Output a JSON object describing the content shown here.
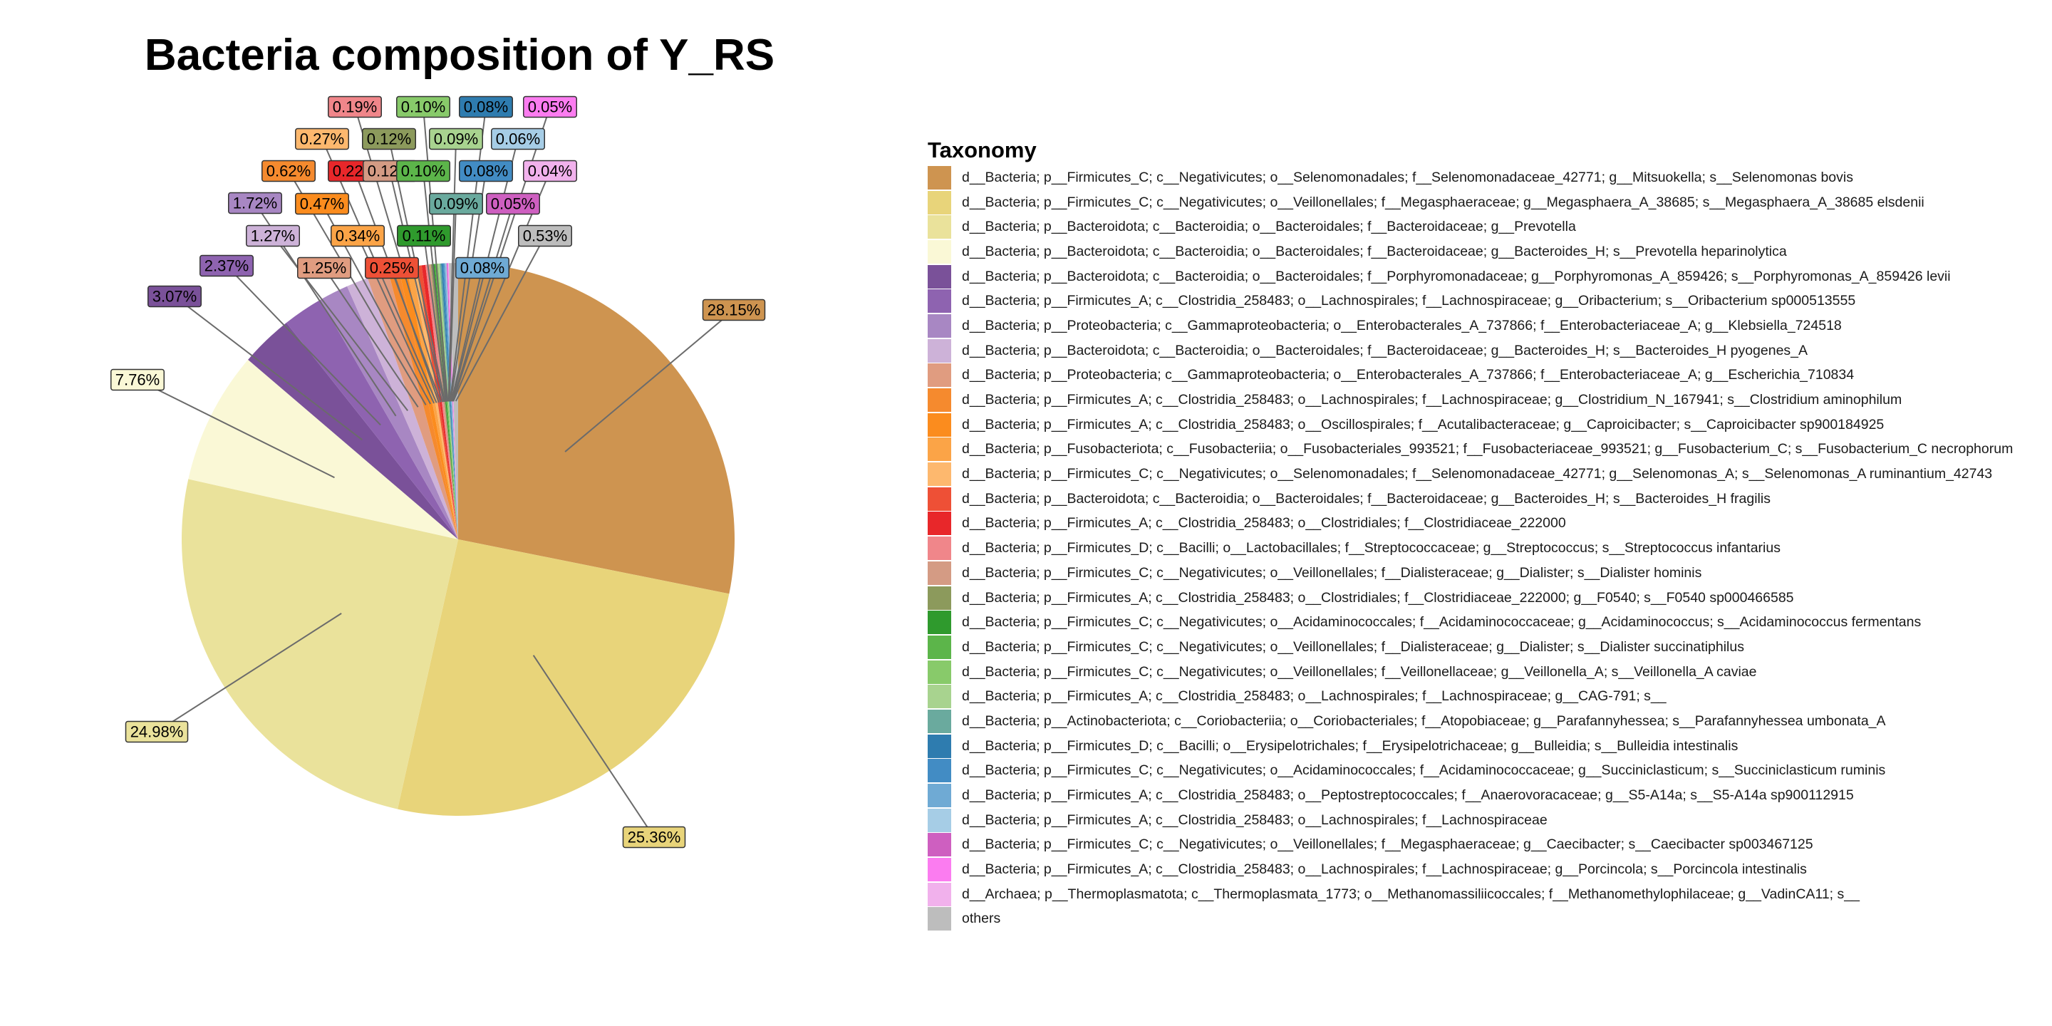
{
  "chart_data": {
    "type": "pie",
    "title": "Bacteria composition of Y_RS",
    "legend_title": "Taxonomy",
    "legend_position": "right",
    "slices": [
      {
        "label": "d__Bacteria; p__Firmicutes_C; c__Negativicutes; o__Selenomonadales; f__Selenomonadaceae_42771; g__Mitsuokella; s__Selenomonas bovis",
        "value": 28.15,
        "pct": "28.15%",
        "color": "#CE9450"
      },
      {
        "label": "d__Bacteria; p__Firmicutes_C; c__Negativicutes; o__Veillonellales; f__Megasphaeraceae; g__Megasphaera_A_38685; s__Megasphaera_A_38685 elsdenii",
        "value": 25.36,
        "pct": "25.36%",
        "color": "#E8D47A"
      },
      {
        "label": "d__Bacteria; p__Bacteroidota; c__Bacteroidia; o__Bacteroidales; f__Bacteroidaceae; g__Prevotella",
        "value": 24.98,
        "pct": "24.98%",
        "color": "#EAE29B"
      },
      {
        "label": "d__Bacteria; p__Bacteroidota; c__Bacteroidia; o__Bacteroidales; f__Bacteroidaceae; g__Bacteroides_H; s__Prevotella heparinolytica",
        "value": 7.76,
        "pct": "7.76%",
        "color": "#FAF8D6"
      },
      {
        "label": "d__Bacteria; p__Bacteroidota; c__Bacteroidia; o__Bacteroidales; f__Porphyromonadaceae; g__Porphyromonas_A_859426; s__Porphyromonas_A_859426 levii",
        "value": 3.07,
        "pct": "3.07%",
        "color": "#7A5199"
      },
      {
        "label": "d__Bacteria; p__Firmicutes_A; c__Clostridia_258483; o__Lachnospirales; f__Lachnospiraceae; g__Oribacterium; s__Oribacterium sp000513555",
        "value": 2.37,
        "pct": "2.37%",
        "color": "#8E63B0"
      },
      {
        "label": "d__Bacteria; p__Proteobacteria; c__Gammaproteobacteria; o__Enterobacterales_A_737866; f__Enterobacteriaceae_A; g__Klebsiella_724518",
        "value": 1.72,
        "pct": "1.72%",
        "color": "#A887C3"
      },
      {
        "label": "d__Bacteria; p__Bacteroidota; c__Bacteroidia; o__Bacteroidales; f__Bacteroidaceae; g__Bacteroides_H; s__Bacteroides_H pyogenes_A",
        "value": 1.27,
        "pct": "1.27%",
        "color": "#CDB2D8"
      },
      {
        "label": "d__Bacteria; p__Proteobacteria; c__Gammaproteobacteria; o__Enterobacterales_A_737866; f__Enterobacteriaceae_A; g__Escherichia_710834",
        "value": 1.25,
        "pct": "1.25%",
        "color": "#E09C80"
      },
      {
        "label": "d__Bacteria; p__Firmicutes_A; c__Clostridia_258483; o__Lachnospirales; f__Lachnospiraceae; g__Clostridium_N_167941; s__Clostridium aminophilum",
        "value": 0.62,
        "pct": "0.62%",
        "color": "#F58A2E"
      },
      {
        "label": "d__Bacteria; p__Firmicutes_A; c__Clostridia_258483; o__Oscillospirales; f__Acutalibacteraceae; g__Caproicibacter; s__Caproicibacter sp900184925",
        "value": 0.47,
        "pct": "0.47%",
        "color": "#FB8C1E"
      },
      {
        "label": "d__Bacteria; p__Fusobacteriota; c__Fusobacteriia; o__Fusobacteriales_993521; f__Fusobacteriaceae_993521; g__Fusobacterium_C; s__Fusobacterium_C necrophorum",
        "value": 0.34,
        "pct": "0.34%",
        "color": "#FBA447"
      },
      {
        "label": "d__Bacteria; p__Firmicutes_C; c__Negativicutes; o__Selenomonadales; f__Selenomonadaceae_42771; g__Selenomonas_A; s__Selenomonas_A ruminantium_42743",
        "value": 0.27,
        "pct": "0.27%",
        "color": "#FDB86E"
      },
      {
        "label": "d__Bacteria; p__Bacteroidota; c__Bacteroidia; o__Bacteroidales; f__Bacteroidaceae; g__Bacteroides_H; s__Bacteroides_H fragilis",
        "value": 0.25,
        "pct": "0.25%",
        "color": "#EE5036"
      },
      {
        "label": "d__Bacteria; p__Firmicutes_A; c__Clostridia_258483; o__Clostridiales; f__Clostridiaceae_222000",
        "value": 0.22,
        "pct": "0.22%",
        "color": "#E8272A"
      },
      {
        "label": "d__Bacteria; p__Firmicutes_D; c__Bacilli; o__Lactobacillales; f__Streptococcaceae; g__Streptococcus; s__Streptococcus infantarius",
        "value": 0.19,
        "pct": "0.19%",
        "color": "#F0868A"
      },
      {
        "label": "d__Bacteria; p__Firmicutes_C; c__Negativicutes; o__Veillonellales; f__Dialisteraceae; g__Dialister; s__Dialister hominis",
        "value": 0.12,
        "pct": "0.12%",
        "color": "#D49B84"
      },
      {
        "label": "d__Bacteria; p__Firmicutes_A; c__Clostridia_258483; o__Clostridiales; f__Clostridiaceae_222000; g__F0540; s__F0540 sp000466585",
        "value": 0.12,
        "pct": "0.12%",
        "color": "#8C9A5C"
      },
      {
        "label": "d__Bacteria; p__Firmicutes_C; c__Negativicutes; o__Acidaminococcales; f__Acidaminococcaceae; g__Acidaminococcus; s__Acidaminococcus fermentans",
        "value": 0.11,
        "pct": "0.11%",
        "color": "#2F9A2D"
      },
      {
        "label": "d__Bacteria; p__Firmicutes_C; c__Negativicutes; o__Veillonellales; f__Dialisteraceae; g__Dialister; s__Dialister succinatiphilus",
        "value": 0.1,
        "pct": "0.10%",
        "color": "#5CB54A"
      },
      {
        "label": "d__Bacteria; p__Firmicutes_C; c__Negativicutes; o__Veillonellales; f__Veillonellaceae; g__Veillonella_A; s__Veillonella_A caviae",
        "value": 0.1,
        "pct": "0.10%",
        "color": "#88CA6A"
      },
      {
        "label": "d__Bacteria; p__Firmicutes_A; c__Clostridia_258483; o__Lachnospirales; f__Lachnospiraceae; g__CAG-791; s__",
        "value": 0.09,
        "pct": "0.09%",
        "color": "#A8D38F"
      },
      {
        "label": "d__Bacteria; p__Actinobacteriota; c__Coriobacteriia; o__Coriobacteriales; f__Atopobiaceae; g__Parafannyhessea; s__Parafannyhessea umbonata_A",
        "value": 0.09,
        "pct": "0.09%",
        "color": "#6AAA9E"
      },
      {
        "label": "d__Bacteria; p__Firmicutes_D; c__Bacilli; o__Erysipelotrichales; f__Erysipelotrichaceae; g__Bulleidia; s__Bulleidia intestinalis",
        "value": 0.08,
        "pct": "0.08%",
        "color": "#2E7CAF"
      },
      {
        "label": "d__Bacteria; p__Firmicutes_C; c__Negativicutes; o__Acidaminococcales; f__Acidaminococcaceae; g__Succiniclasticum; s__Succiniclasticum ruminis",
        "value": 0.08,
        "pct": "0.08%",
        "color": "#428CC4"
      },
      {
        "label": "d__Bacteria; p__Firmicutes_A; c__Clostridia_258483; o__Peptostreptococcales; f__Anaerovoracaceae; g__S5-A14a; s__S5-A14a sp900112915",
        "value": 0.08,
        "pct": "0.08%",
        "color": "#6FAAD4"
      },
      {
        "label": "d__Bacteria; p__Firmicutes_A; c__Clostridia_258483; o__Lachnospirales; f__Lachnospiraceae",
        "value": 0.06,
        "pct": "0.06%",
        "color": "#A6CDE6"
      },
      {
        "label": "d__Bacteria; p__Firmicutes_C; c__Negativicutes; o__Veillonellales; f__Megasphaeraceae; g__Caecibacter; s__Caecibacter sp003467125",
        "value": 0.05,
        "pct": "0.05%",
        "color": "#CE5FC0"
      },
      {
        "label": "d__Bacteria; p__Firmicutes_A; c__Clostridia_258483; o__Lachnospirales; f__Lachnospiraceae; g__Porcincola; s__Porcincola intestinalis",
        "value": 0.05,
        "pct": "0.05%",
        "color": "#FB7CF0"
      },
      {
        "label": "d__Archaea; p__Thermoplasmatota; c__Thermoplasmata_1773; o__Methanomassiliicoccales; f__Methanomethylophilaceae; g__VadinCA11; s__",
        "value": 0.04,
        "pct": "0.04%",
        "color": "#F1B1EC"
      },
      {
        "label": "others",
        "value": 0.53,
        "pct": "0.53%",
        "color": "#BDBDBD"
      }
    ]
  }
}
